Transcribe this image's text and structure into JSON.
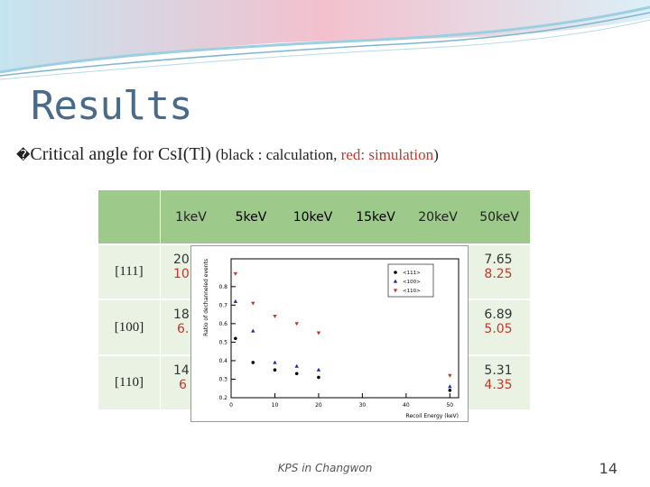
{
  "slide": {
    "title": "Results",
    "bullet_glyph": "�",
    "subtitle_main": "Critical angle for CsI(Tl) ",
    "subtitle_open": "(black : calculation, ",
    "subtitle_red": "red: simulation",
    "subtitle_close": ")",
    "footer": "KPS in Changwon",
    "page_number": "14"
  },
  "table": {
    "headers": [
      "",
      "1keV",
      "5keV",
      "10keV",
      "15keV",
      "20keV",
      "50keV"
    ],
    "rows": [
      {
        "label": "[111]",
        "v1_first": "20",
        "v2_first": "10",
        "v1_last": "7.65",
        "v2_last": "8.25"
      },
      {
        "label": "[100]",
        "v1_first": "18",
        "v2_first": "6.",
        "v1_last": "6.89",
        "v2_last": "5.05"
      },
      {
        "label": "[110]",
        "v1_first": "14",
        "v2_first": "6",
        "v1_last": "5.31",
        "v2_last": "4.35"
      }
    ]
  },
  "chart_data": {
    "type": "scatter",
    "xlabel": "Recoil Energy (keV)",
    "ylabel": "Ratio of dechanneled events",
    "xlim": [
      0,
      52
    ],
    "ylim": [
      0.2,
      0.95
    ],
    "xticks": [
      0,
      10,
      20,
      30,
      40,
      50
    ],
    "yticks": [
      0.2,
      0.3,
      0.4,
      0.5,
      0.6,
      0.7,
      0.8
    ],
    "legend_position": "top-right",
    "series": [
      {
        "name": "<111>",
        "color": "#000000",
        "marker": "circle",
        "x": [
          1,
          5,
          10,
          15,
          20,
          50
        ],
        "y": [
          0.52,
          0.39,
          0.35,
          0.33,
          0.31,
          0.24
        ]
      },
      {
        "name": "<100>",
        "color": "#1a2aa8",
        "marker": "triangle-up",
        "x": [
          1,
          5,
          10,
          15,
          20,
          50
        ],
        "y": [
          0.72,
          0.56,
          0.39,
          0.37,
          0.35,
          0.26
        ]
      },
      {
        "name": "<110>",
        "color": "#c0392b",
        "marker": "triangle-down",
        "x": [
          1,
          5,
          10,
          15,
          20,
          50
        ],
        "y": [
          0.87,
          0.71,
          0.64,
          0.6,
          0.55,
          0.32
        ]
      }
    ]
  }
}
